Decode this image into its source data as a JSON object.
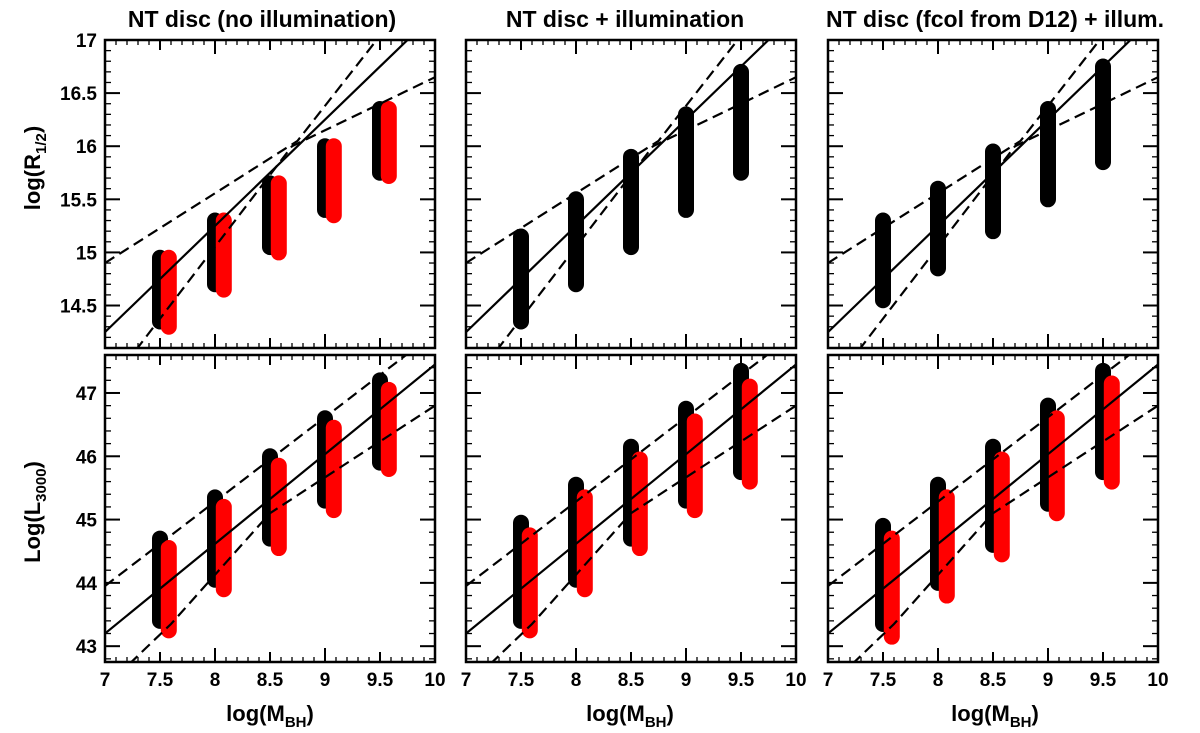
{
  "figure": {
    "column_titles": [
      "NT disc (no illumination)",
      "NT disc + illumination",
      "NT disc (fcol from D12) + illum."
    ],
    "xlabel": {
      "main": "log(M",
      "sub": "BH",
      "close": ")"
    },
    "ylabel_top": {
      "main": "log(R",
      "sub": "1/2",
      "close": ")"
    },
    "ylabel_bottom": {
      "main": "Log(L",
      "sub": "3000",
      "close": ")"
    }
  },
  "colors": {
    "series_black": "#000000",
    "series_red": "#ff0000",
    "lines": "#000000"
  },
  "chart_data": [
    {
      "type": "scatter",
      "panel": "top-left",
      "title": "NT disc (no illumination)",
      "xlabel": "",
      "ylabel": "log(R1/2)",
      "xlim": [
        7,
        10
      ],
      "ylim": [
        14.1,
        17
      ],
      "xticks": [],
      "yticks": [
        14.5,
        15,
        15.5,
        16,
        16.5,
        17
      ],
      "ytick_labels": [
        "14.5",
        "15",
        "15.5",
        "16",
        "16.5",
        "17"
      ],
      "series": [
        {
          "color": "black",
          "values": [
            {
              "x": 7.5,
              "y_min": 14.35,
              "y_max": 14.95
            },
            {
              "x": 8.0,
              "y_min": 14.7,
              "y_max": 15.3
            },
            {
              "x": 8.5,
              "y_min": 15.05,
              "y_max": 15.65
            },
            {
              "x": 9.0,
              "y_min": 15.4,
              "y_max": 16.0
            },
            {
              "x": 9.5,
              "y_min": 15.75,
              "y_max": 16.35
            }
          ]
        },
        {
          "color": "red",
          "values": [
            {
              "x": 7.58,
              "y_min": 14.3,
              "y_max": 14.95
            },
            {
              "x": 8.08,
              "y_min": 14.65,
              "y_max": 15.3
            },
            {
              "x": 8.58,
              "y_min": 15.0,
              "y_max": 15.65
            },
            {
              "x": 9.08,
              "y_min": 15.35,
              "y_max": 16.0
            },
            {
              "x": 9.58,
              "y_min": 15.72,
              "y_max": 16.35
            }
          ]
        }
      ],
      "fit_line": [
        [
          7.0,
          14.25
        ],
        [
          10.0,
          17.25
        ]
      ],
      "band_upper": [
        [
          7.0,
          14.9
        ],
        [
          8.75,
          16.05
        ],
        [
          10.0,
          17.7
        ]
      ],
      "band_lower": [
        [
          7.0,
          13.7
        ],
        [
          8.7,
          16.0
        ],
        [
          10.0,
          16.65
        ]
      ]
    },
    {
      "type": "scatter",
      "panel": "top-middle",
      "title": "NT disc + illumination",
      "xlabel": "",
      "ylabel": "",
      "xlim": [
        7,
        10
      ],
      "ylim": [
        14.1,
        17
      ],
      "xticks": [],
      "yticks": [
        14.5,
        15,
        15.5,
        16,
        16.5,
        17
      ],
      "ytick_labels": [],
      "series": [
        {
          "color": "black",
          "values": [
            {
              "x": 7.5,
              "y_min": 14.35,
              "y_max": 15.15
            },
            {
              "x": 8.0,
              "y_min": 14.7,
              "y_max": 15.5
            },
            {
              "x": 8.5,
              "y_min": 15.05,
              "y_max": 15.9
            },
            {
              "x": 9.0,
              "y_min": 15.4,
              "y_max": 16.3
            },
            {
              "x": 9.5,
              "y_min": 15.75,
              "y_max": 16.7
            }
          ]
        }
      ],
      "fit_line": [
        [
          7.0,
          14.25
        ],
        [
          10.0,
          17.25
        ]
      ],
      "band_upper": [
        [
          7.0,
          14.9
        ],
        [
          8.75,
          16.05
        ],
        [
          10.0,
          17.7
        ]
      ],
      "band_lower": [
        [
          7.0,
          13.7
        ],
        [
          8.7,
          16.0
        ],
        [
          10.0,
          16.65
        ]
      ]
    },
    {
      "type": "scatter",
      "panel": "top-right",
      "title": "NT disc (fcol from D12) + illum.",
      "xlabel": "",
      "ylabel": "",
      "xlim": [
        7,
        10
      ],
      "ylim": [
        14.1,
        17
      ],
      "xticks": [],
      "yticks": [
        14.5,
        15,
        15.5,
        16,
        16.5,
        17
      ],
      "ytick_labels": [],
      "series": [
        {
          "color": "black",
          "values": [
            {
              "x": 7.5,
              "y_min": 14.55,
              "y_max": 15.3
            },
            {
              "x": 8.0,
              "y_min": 14.85,
              "y_max": 15.6
            },
            {
              "x": 8.5,
              "y_min": 15.2,
              "y_max": 15.95
            },
            {
              "x": 9.0,
              "y_min": 15.5,
              "y_max": 16.35
            },
            {
              "x": 9.5,
              "y_min": 15.85,
              "y_max": 16.75
            }
          ]
        }
      ],
      "fit_line": [
        [
          7.0,
          14.25
        ],
        [
          10.0,
          17.25
        ]
      ],
      "band_upper": [
        [
          7.0,
          14.9
        ],
        [
          8.75,
          16.05
        ],
        [
          10.0,
          17.7
        ]
      ],
      "band_lower": [
        [
          7.0,
          13.7
        ],
        [
          8.7,
          16.0
        ],
        [
          10.0,
          16.65
        ]
      ]
    },
    {
      "type": "scatter",
      "panel": "bottom-left",
      "title": "",
      "xlabel": "log(MBH)",
      "ylabel": "Log(L3000)",
      "xlim": [
        7,
        10
      ],
      "ylim": [
        42.75,
        47.6
      ],
      "xticks": [
        7,
        7.5,
        8,
        8.5,
        9,
        9.5,
        10
      ],
      "xtick_labels": [
        "7",
        "7.5",
        "8",
        "8.5",
        "9",
        "9.5",
        "10"
      ],
      "yticks": [
        43,
        44,
        45,
        46,
        47
      ],
      "ytick_labels": [
        "43",
        "44",
        "45",
        "46",
        "47"
      ],
      "series": [
        {
          "color": "black",
          "values": [
            {
              "x": 7.5,
              "y_min": 43.4,
              "y_max": 44.7
            },
            {
              "x": 8.0,
              "y_min": 44.05,
              "y_max": 45.35
            },
            {
              "x": 8.5,
              "y_min": 44.7,
              "y_max": 46.0
            },
            {
              "x": 9.0,
              "y_min": 45.3,
              "y_max": 46.6
            },
            {
              "x": 9.5,
              "y_min": 45.9,
              "y_max": 47.2
            }
          ]
        },
        {
          "color": "red",
          "values": [
            {
              "x": 7.58,
              "y_min": 43.25,
              "y_max": 44.55
            },
            {
              "x": 8.08,
              "y_min": 43.9,
              "y_max": 45.2
            },
            {
              "x": 8.58,
              "y_min": 44.55,
              "y_max": 45.85
            },
            {
              "x": 9.08,
              "y_min": 45.15,
              "y_max": 46.45
            },
            {
              "x": 9.58,
              "y_min": 45.8,
              "y_max": 47.05
            }
          ]
        }
      ],
      "fit_line": [
        [
          7.0,
          43.2
        ],
        [
          10.0,
          47.45
        ]
      ],
      "band_upper": [
        [
          7.0,
          43.95
        ],
        [
          10.0,
          47.95
        ]
      ],
      "band_lower": [
        [
          7.0,
          42.35
        ],
        [
          7.6,
          43.35
        ],
        [
          8.5,
          45.1
        ],
        [
          10.0,
          46.8
        ]
      ]
    },
    {
      "type": "scatter",
      "panel": "bottom-middle",
      "title": "",
      "xlabel": "log(MBH)",
      "ylabel": "",
      "xlim": [
        7,
        10
      ],
      "ylim": [
        42.75,
        47.6
      ],
      "xticks": [
        7,
        7.5,
        8,
        8.5,
        9,
        9.5,
        10
      ],
      "xtick_labels": [
        "7",
        "7.5",
        "8",
        "8.5",
        "9",
        "9.5",
        "10"
      ],
      "yticks": [
        43,
        44,
        45,
        46,
        47
      ],
      "ytick_labels": [],
      "series": [
        {
          "color": "black",
          "values": [
            {
              "x": 7.5,
              "y_min": 43.4,
              "y_max": 44.95
            },
            {
              "x": 8.0,
              "y_min": 44.05,
              "y_max": 45.55
            },
            {
              "x": 8.5,
              "y_min": 44.7,
              "y_max": 46.15
            },
            {
              "x": 9.0,
              "y_min": 45.3,
              "y_max": 46.75
            },
            {
              "x": 9.5,
              "y_min": 45.75,
              "y_max": 47.35
            }
          ]
        },
        {
          "color": "red",
          "values": [
            {
              "x": 7.58,
              "y_min": 43.25,
              "y_max": 44.75
            },
            {
              "x": 8.08,
              "y_min": 43.9,
              "y_max": 45.35
            },
            {
              "x": 8.58,
              "y_min": 44.55,
              "y_max": 45.95
            },
            {
              "x": 9.08,
              "y_min": 45.15,
              "y_max": 46.55
            },
            {
              "x": 9.58,
              "y_min": 45.6,
              "y_max": 47.1
            }
          ]
        }
      ],
      "fit_line": [
        [
          7.0,
          43.2
        ],
        [
          10.0,
          47.45
        ]
      ],
      "band_upper": [
        [
          7.0,
          43.95
        ],
        [
          10.0,
          47.95
        ]
      ],
      "band_lower": [
        [
          7.0,
          42.35
        ],
        [
          7.6,
          43.35
        ],
        [
          8.5,
          45.1
        ],
        [
          10.0,
          46.8
        ]
      ]
    },
    {
      "type": "scatter",
      "panel": "bottom-right",
      "title": "",
      "xlabel": "log(MBH)",
      "ylabel": "",
      "xlim": [
        7,
        10
      ],
      "ylim": [
        42.75,
        47.6
      ],
      "xticks": [
        7,
        7.5,
        8,
        8.5,
        9,
        9.5,
        10
      ],
      "xtick_labels": [
        "7",
        "7.5",
        "8",
        "8.5",
        "9",
        "9.5",
        "10"
      ],
      "yticks": [
        43,
        44,
        45,
        46,
        47
      ],
      "ytick_labels": [],
      "series": [
        {
          "color": "black",
          "values": [
            {
              "x": 7.5,
              "y_min": 43.35,
              "y_max": 44.9
            },
            {
              "x": 8.0,
              "y_min": 44.0,
              "y_max": 45.55
            },
            {
              "x": 8.5,
              "y_min": 44.6,
              "y_max": 46.15
            },
            {
              "x": 9.0,
              "y_min": 45.25,
              "y_max": 46.8
            },
            {
              "x": 9.5,
              "y_min": 45.75,
              "y_max": 47.35
            }
          ]
        },
        {
          "color": "red",
          "values": [
            {
              "x": 7.58,
              "y_min": 43.15,
              "y_max": 44.7
            },
            {
              "x": 8.08,
              "y_min": 43.8,
              "y_max": 45.35
            },
            {
              "x": 8.58,
              "y_min": 44.45,
              "y_max": 45.95
            },
            {
              "x": 9.08,
              "y_min": 45.1,
              "y_max": 46.6
            },
            {
              "x": 9.58,
              "y_min": 45.6,
              "y_max": 47.15
            }
          ]
        }
      ],
      "fit_line": [
        [
          7.0,
          43.2
        ],
        [
          10.0,
          47.45
        ]
      ],
      "band_upper": [
        [
          7.0,
          43.95
        ],
        [
          10.0,
          47.95
        ]
      ],
      "band_lower": [
        [
          7.0,
          42.35
        ],
        [
          7.6,
          43.35
        ],
        [
          8.5,
          45.1
        ],
        [
          10.0,
          46.8
        ]
      ]
    }
  ]
}
